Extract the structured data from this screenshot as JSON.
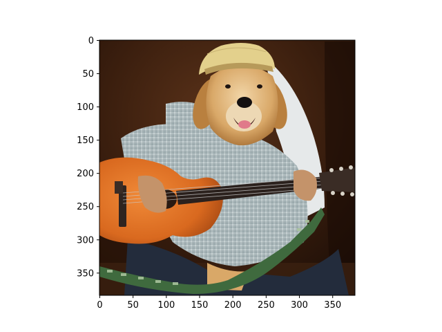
{
  "figure": {
    "image_subject": "golden-retriever-playing-guitar",
    "x_ticks": [
      0,
      50,
      100,
      150,
      200,
      250,
      300,
      350
    ],
    "y_ticks": [
      0,
      50,
      100,
      150,
      200,
      250,
      300,
      350
    ],
    "x_tick_labels": [
      "0",
      "50",
      "100",
      "150",
      "200",
      "250",
      "300",
      "350"
    ],
    "y_tick_labels": [
      "0",
      "50",
      "100",
      "150",
      "200",
      "250",
      "300",
      "350"
    ],
    "x_range": [
      -0.5,
      383.5
    ],
    "y_range": [
      383.5,
      -0.5
    ],
    "image_size": [
      384,
      384
    ]
  },
  "colors": {
    "background_dark": "#2a150b",
    "wood_mid": "#4a2814",
    "guitar_orange": "#e0762a",
    "guitar_dark": "#3a2a22",
    "shirt": "#b9c4c6",
    "fur": "#d2a56a",
    "hat": "#e3d08c",
    "strap_green": "#3f6a3e"
  }
}
